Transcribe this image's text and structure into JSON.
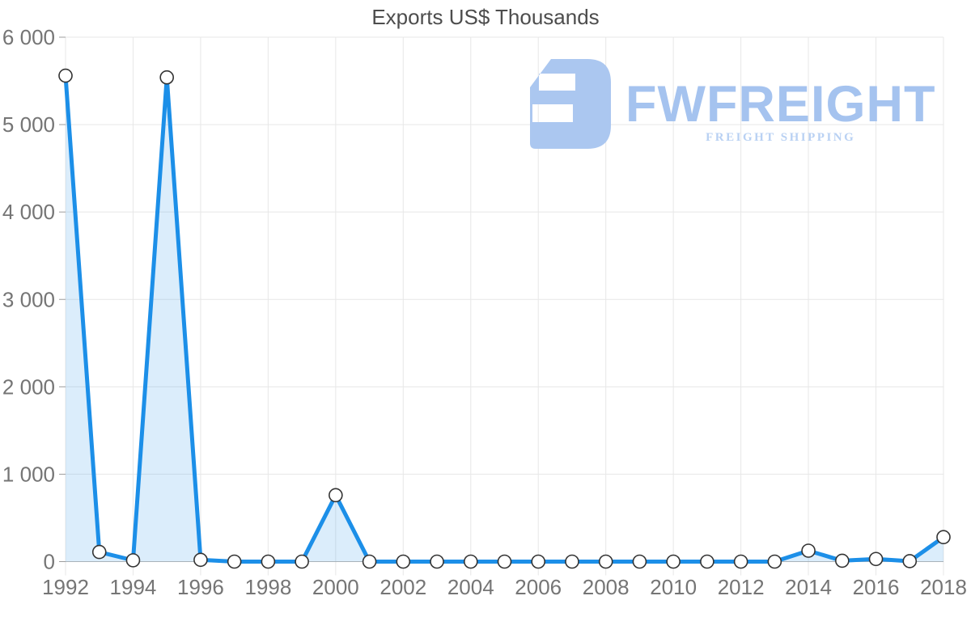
{
  "title": "Exports US$ Thousands",
  "watermark": {
    "brand": "FWFREIGHT",
    "tagline": "FREIGHT SHIPPING",
    "icon": "fwfreight-monogram-icon",
    "icon_color": "#abc7f0",
    "brand_color": "#a5c3ef",
    "tagline_color": "#b9d1f3"
  },
  "chart_data": {
    "type": "area",
    "title": "Exports US$ Thousands",
    "xlabel": "",
    "ylabel": "",
    "x": [
      1992,
      1993,
      1994,
      1995,
      1996,
      1997,
      1998,
      1999,
      2000,
      2001,
      2002,
      2003,
      2004,
      2005,
      2006,
      2007,
      2008,
      2009,
      2010,
      2011,
      2012,
      2013,
      2014,
      2015,
      2016,
      2017,
      2018
    ],
    "values": [
      5560,
      110,
      15,
      5540,
      20,
      0,
      0,
      0,
      760,
      0,
      0,
      0,
      0,
      0,
      0,
      0,
      0,
      0,
      0,
      0,
      0,
      0,
      125,
      10,
      30,
      5,
      280
    ],
    "ylim": [
      0,
      6000
    ],
    "y_ticks": [
      0,
      1000,
      2000,
      3000,
      4000,
      5000,
      6000
    ],
    "y_tick_labels": [
      "0",
      "1 000",
      "2 000",
      "3 000",
      "4 000",
      "5 000",
      "6 000"
    ],
    "x_tick_years": [
      1992,
      1994,
      1996,
      1998,
      2000,
      2002,
      2004,
      2006,
      2008,
      2010,
      2012,
      2014,
      2016,
      2018
    ],
    "x_tick_labels": [
      "1992",
      "1994",
      "1996",
      "1998",
      "2000",
      "2002",
      "2004",
      "2006",
      "2008",
      "2010",
      "2012",
      "2014",
      "2016",
      "2018"
    ],
    "grid": true,
    "legend": "none",
    "line_color": "#1c8fe8",
    "fill_color": "rgba(30,143,232,0.16)",
    "marker_style": "white-circle-dark-ring",
    "grid_color": "#e7e7e7",
    "zero_axis_color": "#b5b5b5",
    "tick_label_color": "#757575",
    "title_color": "#4d4d4d"
  }
}
